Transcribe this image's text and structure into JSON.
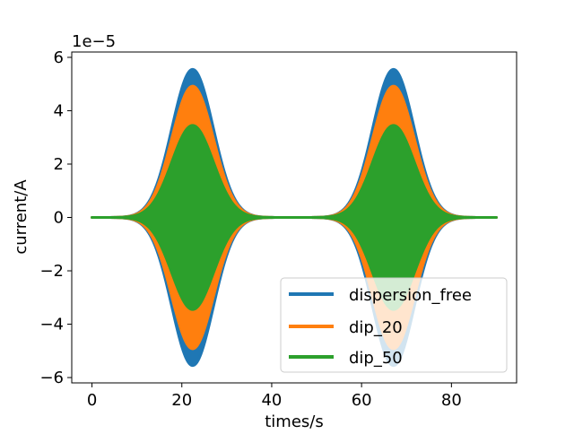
{
  "chart_data": {
    "type": "area",
    "title": "",
    "xlabel": "times/s",
    "ylabel": "current/A",
    "offset_label": "1e−5",
    "xlim": [
      -4.5,
      94.5
    ],
    "ylim": [
      -6.2,
      6.2
    ],
    "x_ticks": [
      0,
      20,
      40,
      60,
      80
    ],
    "x_tick_labels": [
      "0",
      "20",
      "40",
      "60",
      "80"
    ],
    "y_ticks": [
      -6,
      -4,
      -2,
      0,
      2,
      4,
      6
    ],
    "y_tick_labels": [
      "−6",
      "−4",
      "−2",
      "0",
      "2",
      "4",
      "6"
    ],
    "pulse_centers": [
      22.4,
      67.1
    ],
    "pulse_sigma": 4.6,
    "x_range": [
      0,
      90
    ],
    "series": [
      {
        "name": "dispersion_free",
        "color": "#1f77b4",
        "amplitude": 5.55
      },
      {
        "name": "dip_20",
        "color": "#ff7f0e",
        "amplitude": 4.92
      },
      {
        "name": "dip_50",
        "color": "#2ca02c",
        "amplitude": 3.45
      }
    ],
    "legend": {
      "placement": "lower-right",
      "entries": [
        "dispersion_free",
        "dip_20",
        "dip_50"
      ]
    }
  }
}
